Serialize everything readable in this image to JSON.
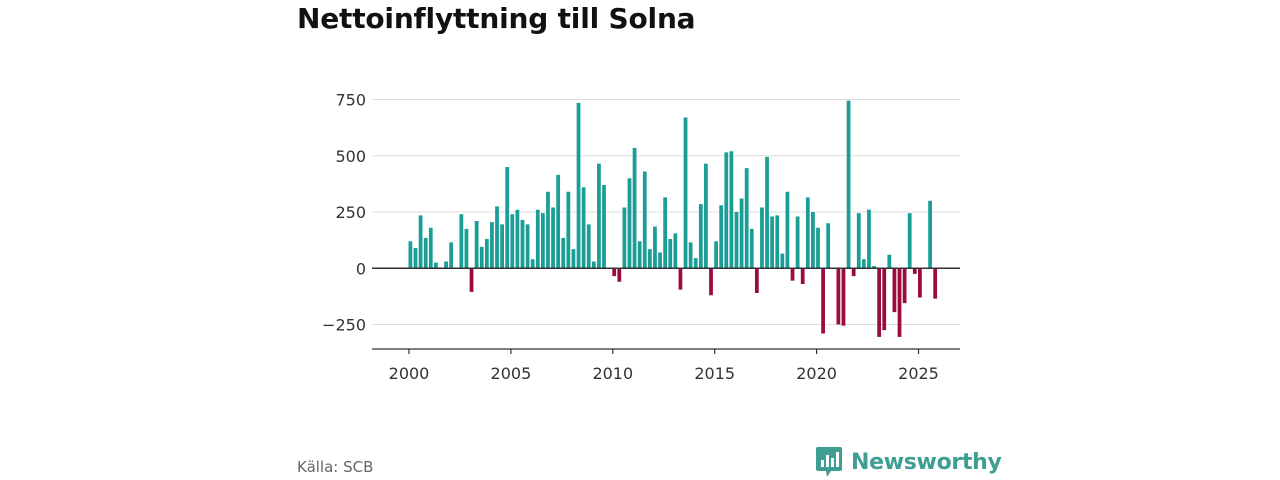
{
  "header": {
    "title": "Nettoinflyttning till Solna"
  },
  "footer": {
    "source": "Källa: SCB",
    "brand": "Newsworthy"
  },
  "colors": {
    "positive": "#1a9e96",
    "negative": "#9a0c3f",
    "grid": "#dddddd",
    "zero_line": "#333333",
    "brand": "#3f9e94"
  },
  "icons": {
    "brand_logo": "bar-chart-badge-icon"
  },
  "chart_data": {
    "type": "bar",
    "title": "Nettoinflyttning till Solna",
    "xlabel": "",
    "ylabel": "",
    "ylim": [
      -300,
      760
    ],
    "xlim": [
      1999.6,
      2027.1
    ],
    "yticks": [
      750,
      500,
      250,
      0,
      -250
    ],
    "ytick_labels": [
      "750",
      "500",
      "250",
      "0",
      "−250"
    ],
    "xticks": [
      2000,
      2005,
      2010,
      2015,
      2020,
      2025
    ],
    "xtick_labels": [
      "2000",
      "2005",
      "2010",
      "2015",
      "2020",
      "2025"
    ],
    "grid": true,
    "frequency": "quarterly",
    "start": 2000,
    "series": [
      {
        "name": "Nettoinflyttning",
        "values": [
          120,
          90,
          235,
          135,
          180,
          25,
          0,
          30,
          115,
          0,
          240,
          175,
          -105,
          210,
          95,
          130,
          205,
          275,
          195,
          450,
          240,
          260,
          215,
          195,
          40,
          260,
          245,
          340,
          270,
          415,
          135,
          340,
          85,
          735,
          360,
          195,
          30,
          465,
          370,
          0,
          -35,
          -60,
          270,
          400,
          535,
          120,
          430,
          85,
          185,
          70,
          315,
          130,
          155,
          -95,
          670,
          115,
          45,
          285,
          465,
          -120,
          120,
          280,
          515,
          520,
          250,
          310,
          445,
          175,
          -110,
          270,
          495,
          230,
          235,
          65,
          340,
          -55,
          230,
          -70,
          315,
          250,
          180,
          -290,
          200,
          0,
          -250,
          -255,
          745,
          -35,
          245,
          40,
          260,
          10,
          -305,
          -275,
          60,
          -195,
          -305,
          -155,
          245,
          -25,
          -130,
          0,
          300,
          -135
        ]
      }
    ]
  }
}
